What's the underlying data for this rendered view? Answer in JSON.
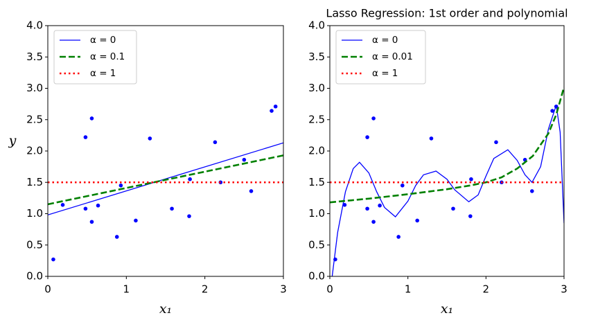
{
  "chart_data": [
    {
      "type": "line",
      "xlabel": "x₁",
      "ylabel": "y",
      "xlim": [
        0,
        3
      ],
      "xticks": [
        0,
        1,
        2,
        3
      ],
      "ylim": [
        0,
        4
      ],
      "yticks": [
        {
          "value": 0,
          "label": "0.0"
        },
        {
          "value": 0.5,
          "label": "0.5"
        },
        {
          "value": 1,
          "label": "1.0"
        },
        {
          "value": 1.5,
          "label": "1.5"
        },
        {
          "value": 2,
          "label": "2.0"
        },
        {
          "value": 2.5,
          "label": "2.5"
        },
        {
          "value": 3,
          "label": "3.0"
        },
        {
          "value": 3.5,
          "label": "3.5"
        },
        {
          "value": 4,
          "label": "4.0"
        }
      ],
      "legend": "upper left",
      "points": {
        "color": "#0000ff",
        "x": [
          0.07,
          0.19,
          0.48,
          0.48,
          0.56,
          0.56,
          0.64,
          0.88,
          0.93,
          1.12,
          1.3,
          1.58,
          1.8,
          1.81,
          2.13,
          2.2,
          2.5,
          2.59,
          2.85,
          2.9
        ],
        "y": [
          0.27,
          1.14,
          2.22,
          1.08,
          2.52,
          0.87,
          1.13,
          0.63,
          1.45,
          0.89,
          2.2,
          1.08,
          0.96,
          1.55,
          2.14,
          1.5,
          1.86,
          1.36,
          2.64,
          2.71
        ]
      },
      "series": [
        {
          "name": "α = 0",
          "color": "#0000ff",
          "dash": "solid",
          "x": [
            0,
            3
          ],
          "values": [
            0.98,
            2.13
          ]
        },
        {
          "name": "α = 0.1",
          "color": "#008000",
          "dash": "dashed",
          "x": [
            0,
            3
          ],
          "values": [
            1.15,
            1.93
          ]
        },
        {
          "name": "α = 1",
          "color": "#ff0000",
          "dash": "dotted",
          "x": [
            0,
            3
          ],
          "values": [
            1.5,
            1.5
          ]
        }
      ]
    },
    {
      "type": "line",
      "title": "Lasso Regression: 1st order and polynomial",
      "xlabel": "x₁",
      "xlim": [
        0,
        3
      ],
      "xticks": [
        0,
        1,
        2,
        3
      ],
      "ylim": [
        0,
        4
      ],
      "yticks": [
        {
          "value": 0,
          "label": "0.0"
        },
        {
          "value": 0.5,
          "label": "0.5"
        },
        {
          "value": 1,
          "label": "1.0"
        },
        {
          "value": 1.5,
          "label": "1.5"
        },
        {
          "value": 2,
          "label": "2.0"
        },
        {
          "value": 2.5,
          "label": "2.5"
        },
        {
          "value": 3,
          "label": "3.0"
        },
        {
          "value": 3.5,
          "label": "3.5"
        },
        {
          "value": 4,
          "label": "4.0"
        }
      ],
      "legend": "upper left",
      "points": {
        "color": "#0000ff",
        "x": [
          0.07,
          0.19,
          0.48,
          0.48,
          0.56,
          0.56,
          0.64,
          0.88,
          0.93,
          1.12,
          1.3,
          1.58,
          1.8,
          1.81,
          2.13,
          2.2,
          2.5,
          2.59,
          2.85,
          2.9
        ],
        "y": [
          0.27,
          1.14,
          2.22,
          1.08,
          2.52,
          0.87,
          1.13,
          0.63,
          1.45,
          0.89,
          2.2,
          1.08,
          0.96,
          1.55,
          2.14,
          1.5,
          1.86,
          1.36,
          2.64,
          2.71
        ]
      },
      "series": [
        {
          "name": "α = 0",
          "color": "#0000ff",
          "dash": "solid",
          "x": [
            0.03,
            0.1,
            0.2,
            0.3,
            0.38,
            0.5,
            0.6,
            0.7,
            0.84,
            1.0,
            1.1,
            1.2,
            1.36,
            1.5,
            1.6,
            1.78,
            1.9,
            2.0,
            2.1,
            2.28,
            2.4,
            2.5,
            2.59,
            2.7,
            2.8,
            2.9,
            2.95,
            3.0
          ],
          "values": [
            0.0,
            0.7,
            1.35,
            1.72,
            1.82,
            1.65,
            1.35,
            1.1,
            0.95,
            1.2,
            1.45,
            1.62,
            1.68,
            1.55,
            1.38,
            1.19,
            1.3,
            1.6,
            1.88,
            2.02,
            1.85,
            1.62,
            1.5,
            1.75,
            2.35,
            2.73,
            2.3,
            0.85
          ]
        },
        {
          "name": "α = 0.01",
          "color": "#008000",
          "dash": "dashed",
          "x": [
            0,
            0.5,
            1.0,
            1.5,
            1.8,
            2.0,
            2.2,
            2.4,
            2.6,
            2.8,
            2.9,
            3.0
          ],
          "values": [
            1.18,
            1.24,
            1.31,
            1.39,
            1.45,
            1.5,
            1.58,
            1.72,
            1.92,
            2.28,
            2.58,
            3.02
          ]
        },
        {
          "name": "α = 1",
          "color": "#ff0000",
          "dash": "dotted",
          "x": [
            0,
            3
          ],
          "values": [
            1.5,
            1.5
          ]
        }
      ]
    }
  ]
}
